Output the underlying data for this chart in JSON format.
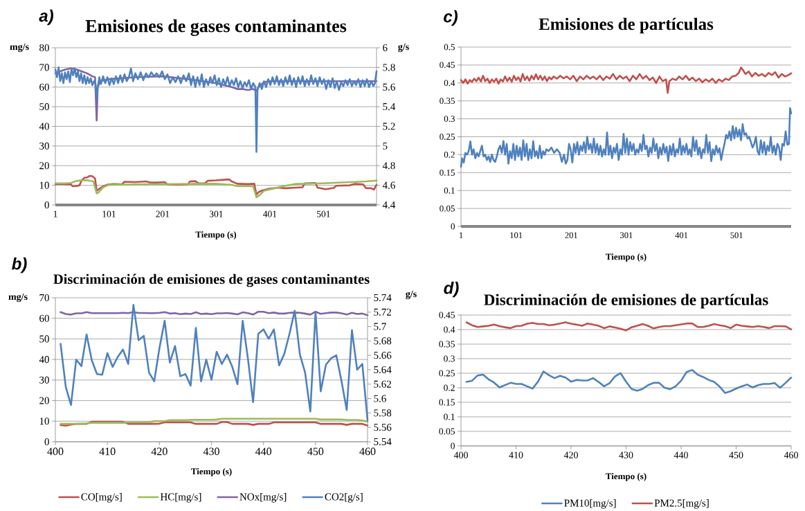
{
  "chart_data": [
    {
      "type": "line",
      "title": "Emisiones de gases contaminantes",
      "xlabel": "Tiempo (s)",
      "ylabel": "mg/s",
      "y2label": "g/s",
      "annotations": [
        "a)"
      ],
      "xlim": [
        1,
        600
      ],
      "xticks": [
        1,
        101,
        201,
        301,
        401,
        501
      ],
      "ylim": [
        0,
        80
      ],
      "yticks": [
        0,
        10,
        20,
        30,
        40,
        50,
        60,
        70,
        80
      ],
      "y2lim": [
        4.4,
        6
      ],
      "y2ticks": [
        4.4,
        4.6,
        4.8,
        5,
        5.2,
        5.4,
        5.6,
        5.8,
        6
      ],
      "grid": "y",
      "series": [
        {
          "color": "#c0504d",
          "x": [
            1,
            10,
            20,
            30,
            33,
            40,
            46,
            50,
            55,
            60,
            65,
            70,
            75,
            78,
            82,
            90,
            99,
            110,
            125,
            130,
            150,
            170,
            176,
            190,
            205,
            210,
            230,
            248,
            252,
            262,
            268,
            280,
            285,
            300,
            315,
            325,
            330,
            340,
            360,
            372,
            376,
            380,
            387,
            400,
            416,
            430,
            450,
            462,
            466,
            486,
            490,
            505,
            520,
            525,
            550,
            560,
            575,
            580,
            590,
            595,
            600
          ],
          "values": [
            10.7,
            10.8,
            10.6,
            10.5,
            9.5,
            9.6,
            10.0,
            12.5,
            13.8,
            14.0,
            14.8,
            14.6,
            13.5,
            7.2,
            8.0,
            9.5,
            10.4,
            10.6,
            10.5,
            11.8,
            11.6,
            12.0,
            11.5,
            11.4,
            11.6,
            10.5,
            10.3,
            10.5,
            12.0,
            12.1,
            11.0,
            11.0,
            12.3,
            12.5,
            12.8,
            13.0,
            12.0,
            10.8,
            10.6,
            10.8,
            5.2,
            6.5,
            7.4,
            8.3,
            8.8,
            8.5,
            8.8,
            9.0,
            11.0,
            11.2,
            8.8,
            8.0,
            8.6,
            9.8,
            10.0,
            10.7,
            10.5,
            8.6,
            8.5,
            7.8,
            10.3
          ]
        },
        {
          "color": "#9bbb59",
          "x": [
            1,
            20,
            30,
            40,
            50,
            60,
            72,
            78,
            82,
            90,
            100,
            150,
            200,
            250,
            300,
            330,
            340,
            370,
            376,
            382,
            390,
            410,
            430,
            450,
            470,
            500,
            550,
            580,
            600
          ],
          "values": [
            11.0,
            11.0,
            11.2,
            12.2,
            12.5,
            12.6,
            12.0,
            5.9,
            6.5,
            9.0,
            10.2,
            10.5,
            10.6,
            10.7,
            10.8,
            10.2,
            9.6,
            9.5,
            3.9,
            5.0,
            7.2,
            8.5,
            9.8,
            10.7,
            10.8,
            11.0,
            11.6,
            12.0,
            12.4
          ]
        },
        {
          "color": "#8064a2",
          "x": [
            1,
            10,
            20,
            30,
            40,
            50,
            60,
            70,
            75,
            78,
            80,
            85,
            100,
            150,
            200,
            250,
            300,
            330,
            340,
            350,
            360,
            370,
            376,
            380,
            390,
            400,
            450,
            500,
            550,
            600
          ],
          "values": [
            67,
            68,
            69,
            69.5,
            69,
            68,
            67,
            65.5,
            65,
            43,
            60,
            63,
            64,
            65,
            65.5,
            64,
            62,
            60,
            59,
            59,
            58.5,
            59,
            58,
            60,
            62.5,
            63,
            63,
            63,
            63,
            63
          ]
        },
        {
          "color": "#4f81bd",
          "axis": "y2",
          "x": [
            1,
            4,
            7,
            10,
            13,
            16,
            19,
            22,
            25,
            28,
            31,
            34,
            37,
            40,
            43,
            46,
            49,
            52,
            55,
            58,
            61,
            64,
            67,
            70,
            73,
            76,
            78,
            80,
            83,
            86,
            90,
            94,
            98,
            102,
            106,
            110,
            114,
            118,
            122,
            126,
            130,
            134,
            138,
            142,
            146,
            150,
            155,
            160,
            165,
            170,
            175,
            180,
            185,
            190,
            195,
            200,
            205,
            210,
            215,
            220,
            225,
            230,
            235,
            240,
            245,
            250,
            254,
            258,
            262,
            266,
            270,
            274,
            278,
            282,
            286,
            290,
            294,
            298,
            302,
            306,
            310,
            314,
            318,
            322,
            326,
            330,
            334,
            338,
            342,
            346,
            350,
            354,
            358,
            362,
            366,
            370,
            374,
            376,
            378,
            382,
            386,
            390,
            394,
            398,
            402,
            406,
            410,
            414,
            418,
            422,
            426,
            430,
            434,
            438,
            442,
            446,
            450,
            454,
            458,
            462,
            466,
            470,
            474,
            478,
            482,
            486,
            490,
            494,
            498,
            502,
            506,
            510,
            514,
            518,
            522,
            526,
            530,
            534,
            538,
            542,
            546,
            550,
            554,
            558,
            562,
            566,
            570,
            574,
            578,
            582,
            586,
            590,
            594,
            597,
            600
          ],
          "values": [
            5.78,
            5.7,
            5.8,
            5.66,
            5.74,
            5.64,
            5.75,
            5.68,
            5.76,
            5.65,
            5.78,
            5.72,
            5.79,
            5.7,
            5.76,
            5.66,
            5.74,
            5.64,
            5.72,
            5.63,
            5.7,
            5.64,
            5.69,
            5.62,
            5.66,
            5.63,
            5.48,
            5.6,
            5.7,
            5.63,
            5.71,
            5.64,
            5.7,
            5.62,
            5.69,
            5.63,
            5.71,
            5.64,
            5.72,
            5.65,
            5.73,
            5.66,
            5.7,
            5.79,
            5.66,
            5.74,
            5.68,
            5.75,
            5.67,
            5.74,
            5.7,
            5.75,
            5.71,
            5.74,
            5.7,
            5.76,
            5.68,
            5.73,
            5.64,
            5.7,
            5.65,
            5.71,
            5.64,
            5.72,
            5.66,
            5.74,
            5.62,
            5.71,
            5.6,
            5.7,
            5.62,
            5.73,
            5.6,
            5.68,
            5.62,
            5.7,
            5.64,
            5.72,
            5.62,
            5.69,
            5.6,
            5.68,
            5.62,
            5.7,
            5.61,
            5.67,
            5.62,
            5.69,
            5.6,
            5.66,
            5.59,
            5.65,
            5.61,
            5.67,
            5.58,
            5.64,
            5.6,
            4.94,
            5.57,
            5.64,
            5.58,
            5.66,
            5.6,
            5.68,
            5.62,
            5.7,
            5.63,
            5.71,
            5.62,
            5.68,
            5.61,
            5.7,
            5.63,
            5.72,
            5.62,
            5.69,
            5.6,
            5.7,
            5.63,
            5.71,
            5.61,
            5.68,
            5.62,
            5.72,
            5.63,
            5.69,
            5.61,
            5.7,
            5.63,
            5.68,
            5.58,
            5.67,
            5.6,
            5.69,
            5.59,
            5.66,
            5.57,
            5.65,
            5.61,
            5.67,
            5.62,
            5.68,
            5.61,
            5.66,
            5.62,
            5.68,
            5.6,
            5.67,
            5.61,
            5.68,
            5.6,
            5.66,
            5.61,
            5.64,
            5.76
          ]
        }
      ]
    },
    {
      "type": "line",
      "title": "Emisiones de partículas",
      "xlabel": "Tiempo (s)",
      "annotations": [
        "c)"
      ],
      "xlim": [
        1,
        600
      ],
      "xticks": [
        1,
        101,
        201,
        301,
        401,
        501
      ],
      "ylim": [
        0,
        0.5
      ],
      "yticks": [
        0,
        0.05,
        0.1,
        0.15,
        0.2,
        0.25,
        0.3,
        0.35,
        0.4,
        0.45,
        0.5
      ],
      "grid": "y",
      "series": [
        {
          "color": "#4f81bd",
          "x": [
            1,
            3,
            6,
            9,
            12,
            15,
            18,
            21,
            24,
            27,
            30,
            33,
            36,
            39,
            42,
            45,
            48,
            51,
            54,
            57,
            60,
            63,
            66,
            69,
            72,
            75,
            78,
            81,
            84,
            87,
            90,
            93,
            96,
            99,
            102,
            105,
            108,
            111,
            114,
            117,
            120,
            123,
            126,
            129,
            132,
            135,
            138,
            141,
            144,
            147,
            150,
            153,
            156,
            160,
            165,
            170,
            175,
            180,
            184,
            188,
            191,
            194,
            197,
            200,
            203,
            206,
            209,
            212,
            215,
            218,
            221,
            224,
            227,
            230,
            233,
            236,
            239,
            242,
            245,
            248,
            251,
            254,
            257,
            260,
            263,
            266,
            269,
            272,
            275,
            278,
            281,
            284,
            287,
            290,
            293,
            296,
            299,
            302,
            305,
            308,
            311,
            314,
            317,
            320,
            323,
            326,
            329,
            332,
            335,
            338,
            341,
            344,
            347,
            350,
            353,
            356,
            359,
            362,
            365,
            368,
            371,
            374,
            377,
            380,
            383,
            386,
            389,
            392,
            395,
            398,
            401,
            404,
            407,
            410,
            413,
            416,
            419,
            422,
            425,
            428,
            431,
            434,
            437,
            440,
            443,
            446,
            449,
            452,
            455,
            458,
            461,
            464,
            467,
            470,
            473,
            476,
            479,
            482,
            485,
            488,
            491,
            494,
            497,
            500,
            503,
            506,
            509,
            512,
            515,
            518,
            521,
            524,
            527,
            530,
            533,
            536,
            539,
            542,
            545,
            548,
            551,
            554,
            557,
            560,
            563,
            566,
            569,
            572,
            575,
            578,
            581,
            584,
            587,
            590,
            593,
            596,
            598,
            600
          ],
          "values": [
            0.166,
            0.19,
            0.178,
            0.205,
            0.2,
            0.21,
            0.237,
            0.2,
            0.215,
            0.19,
            0.205,
            0.195,
            0.21,
            0.225,
            0.195,
            0.2,
            0.185,
            0.195,
            0.18,
            0.2,
            0.185,
            0.18,
            0.195,
            0.215,
            0.225,
            0.205,
            0.238,
            0.2,
            0.23,
            0.175,
            0.21,
            0.19,
            0.23,
            0.185,
            0.225,
            0.195,
            0.22,
            0.185,
            0.24,
            0.195,
            0.23,
            0.185,
            0.215,
            0.19,
            0.238,
            0.195,
            0.21,
            0.19,
            0.225,
            0.19,
            0.21,
            0.2,
            0.215,
            0.21,
            0.22,
            0.205,
            0.215,
            0.205,
            0.18,
            0.2,
            0.175,
            0.185,
            0.23,
            0.215,
            0.178,
            0.23,
            0.205,
            0.235,
            0.2,
            0.225,
            0.21,
            0.235,
            0.205,
            0.25,
            0.215,
            0.23,
            0.205,
            0.245,
            0.205,
            0.23,
            0.2,
            0.225,
            0.195,
            0.215,
            0.2,
            0.262,
            0.2,
            0.225,
            0.19,
            0.22,
            0.205,
            0.23,
            0.185,
            0.215,
            0.2,
            0.258,
            0.205,
            0.245,
            0.2,
            0.235,
            0.21,
            0.23,
            0.2,
            0.215,
            0.205,
            0.23,
            0.21,
            0.255,
            0.215,
            0.225,
            0.195,
            0.22,
            0.205,
            0.245,
            0.21,
            0.23,
            0.19,
            0.22,
            0.2,
            0.23,
            0.205,
            0.222,
            0.182,
            0.225,
            0.2,
            0.23,
            0.195,
            0.215,
            0.205,
            0.245,
            0.2,
            0.225,
            0.205,
            0.23,
            0.2,
            0.215,
            0.195,
            0.25,
            0.21,
            0.24,
            0.2,
            0.22,
            0.19,
            0.215,
            0.205,
            0.255,
            0.205,
            0.235,
            0.182,
            0.215,
            0.2,
            0.225,
            0.205,
            0.218,
            0.185,
            0.21,
            0.23,
            0.255,
            0.245,
            0.265,
            0.24,
            0.28,
            0.245,
            0.275,
            0.25,
            0.27,
            0.24,
            0.285,
            0.255,
            0.26,
            0.245,
            0.25,
            0.235,
            0.22,
            0.23,
            0.25,
            0.21,
            0.2,
            0.24,
            0.205,
            0.235,
            0.2,
            0.225,
            0.21,
            0.25,
            0.205,
            0.225,
            0.2,
            0.23,
            0.22,
            0.185,
            0.23,
            0.225,
            0.265,
            0.228,
            0.23,
            0.33,
            0.315
          ]
        },
        {
          "color": "#c0504d",
          "x": [
            1,
            5,
            9,
            13,
            17,
            21,
            25,
            29,
            33,
            37,
            41,
            45,
            49,
            53,
            57,
            61,
            65,
            69,
            73,
            77,
            81,
            85,
            89,
            93,
            97,
            101,
            105,
            109,
            113,
            117,
            121,
            125,
            129,
            133,
            137,
            141,
            145,
            149,
            153,
            157,
            161,
            165,
            169,
            175,
            181,
            187,
            193,
            199,
            205,
            211,
            217,
            223,
            229,
            235,
            241,
            247,
            253,
            259,
            265,
            271,
            277,
            283,
            289,
            295,
            301,
            307,
            313,
            319,
            325,
            331,
            337,
            343,
            349,
            355,
            361,
            367,
            373,
            376,
            379,
            385,
            391,
            397,
            403,
            409,
            415,
            421,
            427,
            433,
            439,
            445,
            451,
            457,
            463,
            469,
            475,
            481,
            487,
            493,
            499,
            505,
            509,
            513,
            517,
            523,
            529,
            535,
            541,
            547,
            553,
            559,
            565,
            571,
            577,
            583,
            589,
            595,
            600
          ],
          "values": [
            0.408,
            0.4,
            0.41,
            0.398,
            0.408,
            0.403,
            0.412,
            0.405,
            0.415,
            0.404,
            0.42,
            0.405,
            0.412,
            0.4,
            0.41,
            0.403,
            0.412,
            0.398,
            0.41,
            0.404,
            0.418,
            0.405,
            0.415,
            0.403,
            0.42,
            0.408,
            0.416,
            0.404,
            0.425,
            0.408,
            0.418,
            0.406,
            0.42,
            0.41,
            0.424,
            0.41,
            0.42,
            0.408,
            0.418,
            0.405,
            0.416,
            0.41,
            0.418,
            0.412,
            0.42,
            0.413,
            0.418,
            0.41,
            0.42,
            0.405,
            0.418,
            0.41,
            0.42,
            0.412,
            0.418,
            0.41,
            0.42,
            0.408,
            0.418,
            0.412,
            0.425,
            0.41,
            0.42,
            0.412,
            0.418,
            0.405,
            0.42,
            0.41,
            0.425,
            0.412,
            0.42,
            0.408,
            0.415,
            0.4,
            0.418,
            0.405,
            0.41,
            0.372,
            0.405,
            0.412,
            0.408,
            0.418,
            0.41,
            0.42,
            0.408,
            0.415,
            0.405,
            0.412,
            0.402,
            0.41,
            0.404,
            0.412,
            0.4,
            0.41,
            0.404,
            0.412,
            0.408,
            0.418,
            0.42,
            0.428,
            0.443,
            0.435,
            0.425,
            0.432,
            0.418,
            0.428,
            0.42,
            0.425,
            0.418,
            0.428,
            0.422,
            0.43,
            0.415,
            0.425,
            0.418,
            0.422,
            0.427
          ]
        }
      ]
    },
    {
      "type": "line",
      "title": "Discriminación de emisiones de gases contaminantes",
      "xlabel": "Tiempo (s)",
      "ylabel": "mg/s",
      "y2label": "g/s",
      "annotations": [
        "b)"
      ],
      "xlim": [
        400,
        460
      ],
      "xticks": [
        400,
        410,
        420,
        430,
        440,
        450,
        460
      ],
      "ylim": [
        0,
        70
      ],
      "yticks": [
        0,
        10,
        20,
        30,
        40,
        50,
        60,
        70
      ],
      "y2lim": [
        5.54,
        5.74
      ],
      "y2ticks": [
        5.54,
        5.56,
        5.58,
        5.6,
        5.62,
        5.64,
        5.66,
        5.68,
        5.7,
        5.72,
        5.74
      ],
      "grid": "y",
      "legend": "bottom",
      "x": [
        401,
        402,
        403,
        404,
        405,
        406,
        407,
        408,
        409,
        410,
        411,
        412,
        413,
        414,
        415,
        416,
        417,
        418,
        419,
        420,
        421,
        422,
        423,
        424,
        425,
        426,
        427,
        428,
        429,
        430,
        431,
        432,
        433,
        434,
        435,
        436,
        437,
        438,
        439,
        440,
        441,
        442,
        443,
        444,
        445,
        446,
        447,
        448,
        449,
        450,
        451,
        452,
        453,
        454,
        455,
        456,
        457,
        458,
        459,
        460
      ],
      "series": [
        {
          "name": "CO[mg/s]",
          "color": "#c0504d",
          "values": [
            8.1,
            7.8,
            8.3,
            8.7,
            8.7,
            8.7,
            9.7,
            9.7,
            9.7,
            9.7,
            9.7,
            9.7,
            9.7,
            8.7,
            8.7,
            8.7,
            8.7,
            8.7,
            8.7,
            8.8,
            9.4,
            9.4,
            9.4,
            9.4,
            9.4,
            9.4,
            8.7,
            8.7,
            8.7,
            8.7,
            8.7,
            9.6,
            9.6,
            8.7,
            8.7,
            8.7,
            8.7,
            8.2,
            8.7,
            8.7,
            8.7,
            9.4,
            9.4,
            9.4,
            9.4,
            9.4,
            9.4,
            9.4,
            9.4,
            9.4,
            8.7,
            8.7,
            8.7,
            8.7,
            8.7,
            8.2,
            8.7,
            8.7,
            8.7,
            7.9
          ]
        },
        {
          "name": "HC[mg/s]",
          "color": "#9bbb59",
          "values": [
            8.7,
            8.7,
            8.7,
            8.7,
            8.7,
            8.9,
            9.2,
            9.2,
            9.2,
            9.2,
            9.2,
            9.2,
            9.2,
            9.4,
            9.4,
            9.4,
            9.4,
            9.4,
            10.0,
            10.0,
            10.0,
            10.5,
            10.5,
            10.5,
            10.5,
            10.7,
            10.7,
            10.7,
            10.7,
            10.7,
            10.8,
            11.2,
            11.2,
            11.2,
            11.2,
            11.2,
            11.2,
            11.2,
            11.2,
            11.2,
            11.2,
            11.2,
            11.2,
            11.2,
            11.2,
            11.2,
            11.2,
            11.2,
            11.2,
            11.2,
            10.8,
            10.8,
            10.8,
            10.8,
            10.8,
            10.6,
            10.6,
            10.6,
            10.3,
            9.8
          ]
        },
        {
          "name": "NOx[mg/s]",
          "color": "#8064a2",
          "values": [
            63.0,
            62.1,
            61.8,
            62.4,
            62.4,
            63.0,
            62.5,
            62.5,
            62.5,
            62.5,
            62.5,
            62.5,
            62.7,
            62.5,
            63.0,
            62.6,
            62.6,
            62.5,
            62.5,
            62.7,
            63.0,
            62.3,
            62.5,
            62.0,
            62.3,
            62.1,
            62.9,
            62.1,
            62.3,
            62.0,
            62.4,
            62.4,
            62.6,
            62.3,
            61.9,
            62.9,
            62.5,
            61.8,
            63.2,
            63.2,
            62.5,
            62.8,
            62.3,
            62.3,
            62.7,
            62.8,
            62.7,
            62.3,
            61.8,
            63.2,
            62.2,
            62.5,
            62.8,
            62.8,
            62.4,
            61.8,
            62.7,
            62.1,
            62.3,
            61.5
          ]
        },
        {
          "name": "CO2[g/s]",
          "color": "#4f81bd",
          "axis": "y2",
          "values": [
            5.676,
            5.616,
            5.591,
            5.654,
            5.645,
            5.689,
            5.653,
            5.634,
            5.633,
            5.663,
            5.644,
            5.658,
            5.668,
            5.648,
            5.73,
            5.681,
            5.687,
            5.636,
            5.624,
            5.67,
            5.708,
            5.65,
            5.673,
            5.631,
            5.634,
            5.618,
            5.698,
            5.624,
            5.654,
            5.626,
            5.665,
            5.648,
            5.661,
            5.644,
            5.62,
            5.708,
            5.656,
            5.595,
            5.69,
            5.696,
            5.683,
            5.696,
            5.646,
            5.662,
            5.69,
            5.722,
            5.661,
            5.636,
            5.582,
            5.72,
            5.61,
            5.647,
            5.656,
            5.66,
            5.624,
            5.584,
            5.695,
            5.64,
            5.648,
            5.57
          ]
        }
      ]
    },
    {
      "type": "line",
      "title": "Discriminación de emisiones de partículas",
      "xlabel": "Tiempo (s)",
      "annotations": [
        "d)"
      ],
      "xlim": [
        400,
        460
      ],
      "xticks": [
        400,
        410,
        420,
        430,
        440,
        450,
        460
      ],
      "ylim": [
        0,
        0.45
      ],
      "yticks": [
        0,
        0.05,
        0.1,
        0.15,
        0.2,
        0.25,
        0.3,
        0.35,
        0.4,
        0.45
      ],
      "grid": "y",
      "legend": "bottom",
      "x": [
        401,
        402,
        403,
        404,
        405,
        406,
        407,
        408,
        409,
        410,
        411,
        412,
        413,
        414,
        415,
        416,
        417,
        418,
        419,
        420,
        421,
        422,
        423,
        424,
        425,
        426,
        427,
        428,
        429,
        430,
        431,
        432,
        433,
        434,
        435,
        436,
        437,
        438,
        439,
        440,
        441,
        442,
        443,
        444,
        445,
        446,
        447,
        448,
        449,
        450,
        451,
        452,
        453,
        454,
        455,
        456,
        457,
        458,
        459,
        460
      ],
      "series": [
        {
          "name": "PM10[mg/s]",
          "color": "#4f81bd",
          "values": [
            0.22,
            0.224,
            0.242,
            0.245,
            0.229,
            0.218,
            0.201,
            0.209,
            0.217,
            0.213,
            0.213,
            0.205,
            0.197,
            0.221,
            0.256,
            0.243,
            0.233,
            0.241,
            0.235,
            0.221,
            0.227,
            0.225,
            0.225,
            0.233,
            0.22,
            0.205,
            0.216,
            0.239,
            0.25,
            0.221,
            0.196,
            0.19,
            0.196,
            0.209,
            0.217,
            0.217,
            0.2,
            0.195,
            0.205,
            0.224,
            0.254,
            0.261,
            0.245,
            0.237,
            0.227,
            0.22,
            0.204,
            0.182,
            0.188,
            0.197,
            0.205,
            0.211,
            0.201,
            0.209,
            0.213,
            0.213,
            0.216,
            0.2,
            0.217,
            0.235
          ]
        },
        {
          "name": "PM2.5[mg/s]",
          "color": "#c0504d",
          "values": [
            0.425,
            0.415,
            0.409,
            0.411,
            0.413,
            0.417,
            0.412,
            0.408,
            0.405,
            0.412,
            0.413,
            0.42,
            0.423,
            0.419,
            0.419,
            0.415,
            0.417,
            0.421,
            0.425,
            0.42,
            0.417,
            0.413,
            0.421,
            0.417,
            0.413,
            0.405,
            0.411,
            0.407,
            0.403,
            0.397,
            0.408,
            0.413,
            0.419,
            0.413,
            0.404,
            0.409,
            0.412,
            0.412,
            0.415,
            0.418,
            0.421,
            0.421,
            0.409,
            0.409,
            0.413,
            0.419,
            0.415,
            0.412,
            0.405,
            0.417,
            0.413,
            0.411,
            0.409,
            0.412,
            0.409,
            0.405,
            0.412,
            0.412,
            0.411,
            0.401
          ]
        }
      ]
    }
  ]
}
